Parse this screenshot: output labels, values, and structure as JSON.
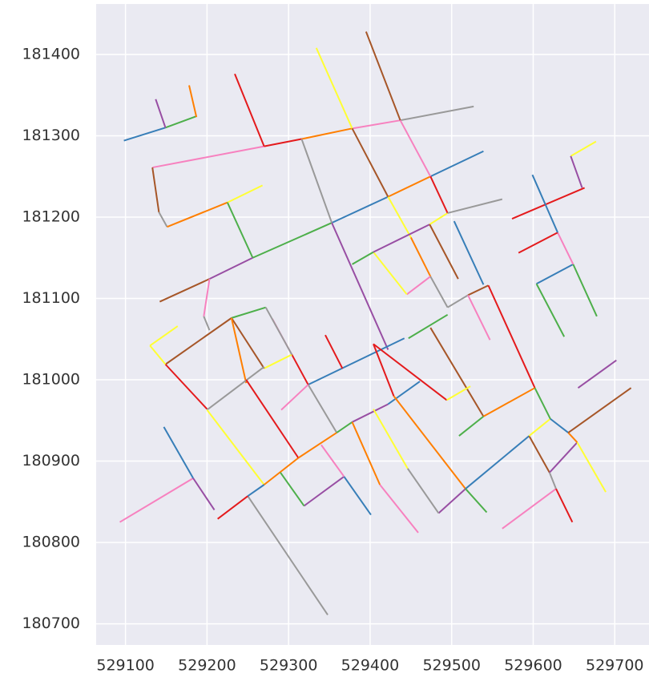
{
  "chart_data": {
    "type": "line",
    "grid": true,
    "background": "#eaeaf2",
    "xlim": [
      529064,
      529742
    ],
    "ylim": [
      180674,
      181462
    ],
    "xticks": [
      529100,
      529200,
      529300,
      529400,
      529500,
      529600,
      529700
    ],
    "yticks": [
      180700,
      180800,
      180900,
      181000,
      181100,
      181200,
      181300,
      181400
    ],
    "series": [
      {
        "color": "#377eb8",
        "x": [
          529098,
          529149
        ],
        "values": [
          181294,
          181310
        ]
      },
      {
        "color": "#4daf4a",
        "x": [
          529149,
          529187
        ],
        "values": [
          181310,
          181324
        ]
      },
      {
        "color": "#984ea3",
        "x": [
          529137,
          529149
        ],
        "values": [
          181345,
          181310
        ]
      },
      {
        "color": "#ff7f00",
        "x": [
          529178,
          529187
        ],
        "values": [
          181362,
          181323
        ]
      },
      {
        "color": "#f781bf",
        "x": [
          529133,
          529270
        ],
        "values": [
          181261,
          181287
        ]
      },
      {
        "color": "#e41a1c",
        "x": [
          529234,
          529270
        ],
        "values": [
          181376,
          181287
        ]
      },
      {
        "color": "#e41a1c",
        "x": [
          529270,
          529316
        ],
        "values": [
          181287,
          181296
        ]
      },
      {
        "color": "#ff7f00",
        "x": [
          529316,
          529378
        ],
        "values": [
          181296,
          181309
        ]
      },
      {
        "color": "#f781bf",
        "x": [
          529378,
          529437
        ],
        "values": [
          181309,
          181319
        ]
      },
      {
        "color": "#999999",
        "x": [
          529437,
          529527
        ],
        "values": [
          181319,
          181336
        ]
      },
      {
        "color": "#a65628",
        "x": [
          529133,
          529141
        ],
        "values": [
          181261,
          181206
        ]
      },
      {
        "color": "#999999",
        "x": [
          529141,
          529151
        ],
        "values": [
          181206,
          181188
        ]
      },
      {
        "color": "#ff7f00",
        "x": [
          529151,
          529225
        ],
        "values": [
          181188,
          181218
        ]
      },
      {
        "color": "#ffff33",
        "x": [
          529225,
          529268
        ],
        "values": [
          181218,
          181239
        ]
      },
      {
        "color": "#4daf4a",
        "x": [
          529225,
          529256
        ],
        "values": [
          181218,
          181150
        ]
      },
      {
        "color": "#4daf4a",
        "x": [
          529256,
          529353
        ],
        "values": [
          181150,
          181193
        ]
      },
      {
        "color": "#377eb8",
        "x": [
          529353,
          529422
        ],
        "values": [
          181193,
          181225
        ]
      },
      {
        "color": "#ff7f00",
        "x": [
          529422,
          529474
        ],
        "values": [
          181225,
          181250
        ]
      },
      {
        "color": "#377eb8",
        "x": [
          529474,
          529539
        ],
        "values": [
          181250,
          181281
        ]
      },
      {
        "color": "#ffff33",
        "x": [
          529334,
          529378
        ],
        "values": [
          181408,
          181309
        ]
      },
      {
        "color": "#a65628",
        "x": [
          529395,
          529437
        ],
        "values": [
          181428,
          181319
        ]
      },
      {
        "color": "#a65628",
        "x": [
          529378,
          529422
        ],
        "values": [
          181309,
          181225
        ]
      },
      {
        "color": "#f781bf",
        "x": [
          529437,
          529474
        ],
        "values": [
          181319,
          181250
        ]
      },
      {
        "color": "#999999",
        "x": [
          529316,
          529353
        ],
        "values": [
          181296,
          181193
        ]
      },
      {
        "color": "#984ea3",
        "x": [
          529353,
          529422
        ],
        "values": [
          181193,
          181037
        ]
      },
      {
        "color": "#984ea3",
        "x": [
          529256,
          529203
        ],
        "values": [
          181150,
          181124
        ]
      },
      {
        "color": "#a65628",
        "x": [
          529203,
          529142
        ],
        "values": [
          181124,
          181096
        ]
      },
      {
        "color": "#f781bf",
        "x": [
          529203,
          529196
        ],
        "values": [
          181124,
          181078
        ]
      },
      {
        "color": "#999999",
        "x": [
          529196,
          529203
        ],
        "values": [
          181078,
          181061
        ]
      },
      {
        "color": "#ffff33",
        "x": [
          529422,
          529450
        ],
        "values": [
          181225,
          181175
        ]
      },
      {
        "color": "#ff7f00",
        "x": [
          529450,
          529474
        ],
        "values": [
          181175,
          181127
        ]
      },
      {
        "color": "#f781bf",
        "x": [
          529474,
          529445
        ],
        "values": [
          181127,
          181105
        ]
      },
      {
        "color": "#ffff33",
        "x": [
          529404,
          529445
        ],
        "values": [
          181157,
          181105
        ]
      },
      {
        "color": "#4daf4a",
        "x": [
          529378,
          529404
        ],
        "values": [
          181142,
          181157
        ]
      },
      {
        "color": "#984ea3",
        "x": [
          529404,
          529473
        ],
        "values": [
          181157,
          181191
        ]
      },
      {
        "color": "#ffff33",
        "x": [
          529473,
          529495
        ],
        "values": [
          181191,
          181205
        ]
      },
      {
        "color": "#e41a1c",
        "x": [
          529474,
          529495
        ],
        "values": [
          181250,
          181205
        ]
      },
      {
        "color": "#a65628",
        "x": [
          529473,
          529508
        ],
        "values": [
          181191,
          181124
        ]
      },
      {
        "color": "#377eb8",
        "x": [
          529503,
          529539
        ],
        "values": [
          181195,
          181117
        ]
      },
      {
        "color": "#999999",
        "x": [
          529495,
          529562
        ],
        "values": [
          181205,
          181222
        ]
      },
      {
        "color": "#999999",
        "x": [
          529474,
          529495
        ],
        "values": [
          181127,
          181089
        ]
      },
      {
        "color": "#999999",
        "x": [
          529495,
          529520
        ],
        "values": [
          181089,
          181104
        ]
      },
      {
        "color": "#a65628",
        "x": [
          529520,
          529545
        ],
        "values": [
          181104,
          181116
        ]
      },
      {
        "color": "#f781bf",
        "x": [
          529520,
          529547
        ],
        "values": [
          181104,
          181049
        ]
      },
      {
        "color": "#e41a1c",
        "x": [
          529545,
          529602
        ],
        "values": [
          181116,
          180990
        ]
      },
      {
        "color": "#4daf4a",
        "x": [
          529447,
          529495
        ],
        "values": [
          181051,
          181080
        ]
      },
      {
        "color": "#377eb8",
        "x": [
          529324,
          529442
        ],
        "values": [
          180994,
          181051
        ]
      },
      {
        "color": "#a65628",
        "x": [
          529474,
          529539
        ],
        "values": [
          181064,
          180955
        ]
      },
      {
        "color": "#e41a1c",
        "x": [
          529404,
          529494
        ],
        "values": [
          181044,
          180975
        ]
      },
      {
        "color": "#ffff33",
        "x": [
          529494,
          529523
        ],
        "values": [
          180975,
          180992
        ]
      },
      {
        "color": "#ff7f00",
        "x": [
          529539,
          529602
        ],
        "values": [
          180955,
          180990
        ]
      },
      {
        "color": "#4daf4a",
        "x": [
          529509,
          529539
        ],
        "values": [
          180931,
          180955
        ]
      },
      {
        "color": "#e41a1c",
        "x": [
          529345,
          529366
        ],
        "values": [
          181055,
          181014
        ]
      },
      {
        "color": "#999999",
        "x": [
          529324,
          529359
        ],
        "values": [
          180994,
          180935
        ]
      },
      {
        "color": "#f781bf",
        "x": [
          529280,
          529304
        ],
        "values": [
          181075,
          181031
        ]
      },
      {
        "color": "#e41a1c",
        "x": [
          529304,
          529324
        ],
        "values": [
          181031,
          180994
        ]
      },
      {
        "color": "#ffff33",
        "x": [
          529270,
          529304
        ],
        "values": [
          181014,
          181031
        ]
      },
      {
        "color": "#a65628",
        "x": [
          529230,
          529270
        ],
        "values": [
          181076,
          181014
        ]
      },
      {
        "color": "#4daf4a",
        "x": [
          529230,
          529272
        ],
        "values": [
          181076,
          181089
        ]
      },
      {
        "color": "#999999",
        "x": [
          529272,
          529304
        ],
        "values": [
          181089,
          181031
        ]
      },
      {
        "color": "#a65628",
        "x": [
          529149,
          529230
        ],
        "values": [
          181019,
          181076
        ]
      },
      {
        "color": "#ff7f00",
        "x": [
          529230,
          529248
        ],
        "values": [
          181076,
          180996
        ]
      },
      {
        "color": "#e41a1c",
        "x": [
          529149,
          529200
        ],
        "values": [
          181019,
          180964
        ]
      },
      {
        "color": "#ffff33",
        "x": [
          529130,
          529164
        ],
        "values": [
          181042,
          181066
        ]
      },
      {
        "color": "#ffff33",
        "x": [
          529130,
          529149
        ],
        "values": [
          181042,
          181019
        ]
      },
      {
        "color": "#999999",
        "x": [
          529200,
          529270
        ],
        "values": [
          180963,
          181016
        ]
      },
      {
        "color": "#ffff33",
        "x": [
          529200,
          529270
        ],
        "values": [
          180963,
          180871
        ]
      },
      {
        "color": "#ff7f00",
        "x": [
          529270,
          529312
        ],
        "values": [
          180871,
          180904
        ]
      },
      {
        "color": "#e41a1c",
        "x": [
          529312,
          529248
        ],
        "values": [
          180904,
          181000
        ]
      },
      {
        "color": "#ff7f00",
        "x": [
          529312,
          529359
        ],
        "values": [
          180904,
          180935
        ]
      },
      {
        "color": "#4daf4a",
        "x": [
          529359,
          529378
        ],
        "values": [
          180935,
          180948
        ]
      },
      {
        "color": "#984ea3",
        "x": [
          529378,
          529422
        ],
        "values": [
          180948,
          180970
        ]
      },
      {
        "color": "#377eb8",
        "x": [
          529422,
          529461
        ],
        "values": [
          180970,
          180998
        ]
      },
      {
        "color": "#e41a1c",
        "x": [
          529404,
          529429
        ],
        "values": [
          181044,
          180980
        ]
      },
      {
        "color": "#ff7f00",
        "x": [
          529429,
          529517
        ],
        "values": [
          180980,
          180866
        ]
      },
      {
        "color": "#377eb8",
        "x": [
          529517,
          529595
        ],
        "values": [
          180866,
          180931
        ]
      },
      {
        "color": "#984ea3",
        "x": [
          529484,
          529517
        ],
        "values": [
          180836,
          180866
        ]
      },
      {
        "color": "#999999",
        "x": [
          529446,
          529484
        ],
        "values": [
          180891,
          180836
        ]
      },
      {
        "color": "#ffff33",
        "x": [
          529404,
          529446
        ],
        "values": [
          180964,
          180891
        ]
      },
      {
        "color": "#ff7f00",
        "x": [
          529378,
          529412
        ],
        "values": [
          180948,
          180871
        ]
      },
      {
        "color": "#f781bf",
        "x": [
          529412,
          529459
        ],
        "values": [
          180871,
          180812
        ]
      },
      {
        "color": "#984ea3",
        "x": [
          529319,
          529368
        ],
        "values": [
          180845,
          180881
        ]
      },
      {
        "color": "#4daf4a",
        "x": [
          529290,
          529319
        ],
        "values": [
          180886,
          180845
        ]
      },
      {
        "color": "#377eb8",
        "x": [
          529368,
          529401
        ],
        "values": [
          180881,
          180834
        ]
      },
      {
        "color": "#f781bf",
        "x": [
          529340,
          529368
        ],
        "values": [
          180920,
          180881
        ]
      },
      {
        "color": "#f781bf",
        "x": [
          529291,
          529324
        ],
        "values": [
          180963,
          180994
        ]
      },
      {
        "color": "#999999",
        "x": [
          529250,
          529348
        ],
        "values": [
          180857,
          180711
        ]
      },
      {
        "color": "#e41a1c",
        "x": [
          529213,
          529250
        ],
        "values": [
          180829,
          180857
        ]
      },
      {
        "color": "#377eb8",
        "x": [
          529250,
          529270
        ],
        "values": [
          180857,
          180871
        ]
      },
      {
        "color": "#f781bf",
        "x": [
          529093,
          529183
        ],
        "values": [
          180825,
          180879
        ]
      },
      {
        "color": "#377eb8",
        "x": [
          529147,
          529183
        ],
        "values": [
          180942,
          180879
        ]
      },
      {
        "color": "#984ea3",
        "x": [
          529183,
          529209
        ],
        "values": [
          180879,
          180840
        ]
      },
      {
        "color": "#4daf4a",
        "x": [
          529517,
          529543
        ],
        "values": [
          180866,
          180837
        ]
      },
      {
        "color": "#a65628",
        "x": [
          529595,
          529620
        ],
        "values": [
          180931,
          180886
        ]
      },
      {
        "color": "#984ea3",
        "x": [
          529620,
          529654
        ],
        "values": [
          180886,
          180923
        ]
      },
      {
        "color": "#f781bf",
        "x": [
          529562,
          529628
        ],
        "values": [
          180817,
          180866
        ]
      },
      {
        "color": "#e41a1c",
        "x": [
          529628,
          529648
        ],
        "values": [
          180866,
          180825
        ]
      },
      {
        "color": "#999999",
        "x": [
          529620,
          529628
        ],
        "values": [
          180886,
          180866
        ]
      },
      {
        "color": "#ffff33",
        "x": [
          529595,
          529621
        ],
        "values": [
          180931,
          180952
        ]
      },
      {
        "color": "#377eb8",
        "x": [
          529621,
          529643
        ],
        "values": [
          180952,
          180935
        ]
      },
      {
        "color": "#ff7f00",
        "x": [
          529643,
          529654
        ],
        "values": [
          180935,
          180923
        ]
      },
      {
        "color": "#ffff33",
        "x": [
          529654,
          529689
        ],
        "values": [
          180923,
          180862
        ]
      },
      {
        "color": "#a65628",
        "x": [
          529643,
          529720
        ],
        "values": [
          180935,
          180990
        ]
      },
      {
        "color": "#984ea3",
        "x": [
          529655,
          529702
        ],
        "values": [
          180990,
          181024
        ]
      },
      {
        "color": "#4daf4a",
        "x": [
          529602,
          529621
        ],
        "values": [
          180990,
          180952
        ]
      },
      {
        "color": "#377eb8",
        "x": [
          529604,
          529649
        ],
        "values": [
          181118,
          181142
        ]
      },
      {
        "color": "#4daf4a",
        "x": [
          529604,
          529638
        ],
        "values": [
          181118,
          181053
        ]
      },
      {
        "color": "#4daf4a",
        "x": [
          529649,
          529678
        ],
        "values": [
          181142,
          181078
        ]
      },
      {
        "color": "#f781bf",
        "x": [
          529630,
          529649
        ],
        "values": [
          181181,
          181142
        ]
      },
      {
        "color": "#e41a1c",
        "x": [
          529582,
          529630
        ],
        "values": [
          181156,
          181181
        ]
      },
      {
        "color": "#e41a1c",
        "x": [
          529574,
          529663
        ],
        "values": [
          181198,
          181236
        ]
      },
      {
        "color": "#377eb8",
        "x": [
          529599,
          529630
        ],
        "values": [
          181252,
          181181
        ]
      },
      {
        "color": "#ffff33",
        "x": [
          529646,
          529677
        ],
        "values": [
          181275,
          181293
        ]
      },
      {
        "color": "#984ea3",
        "x": [
          529646,
          529660
        ],
        "values": [
          181275,
          181236
        ]
      }
    ]
  }
}
